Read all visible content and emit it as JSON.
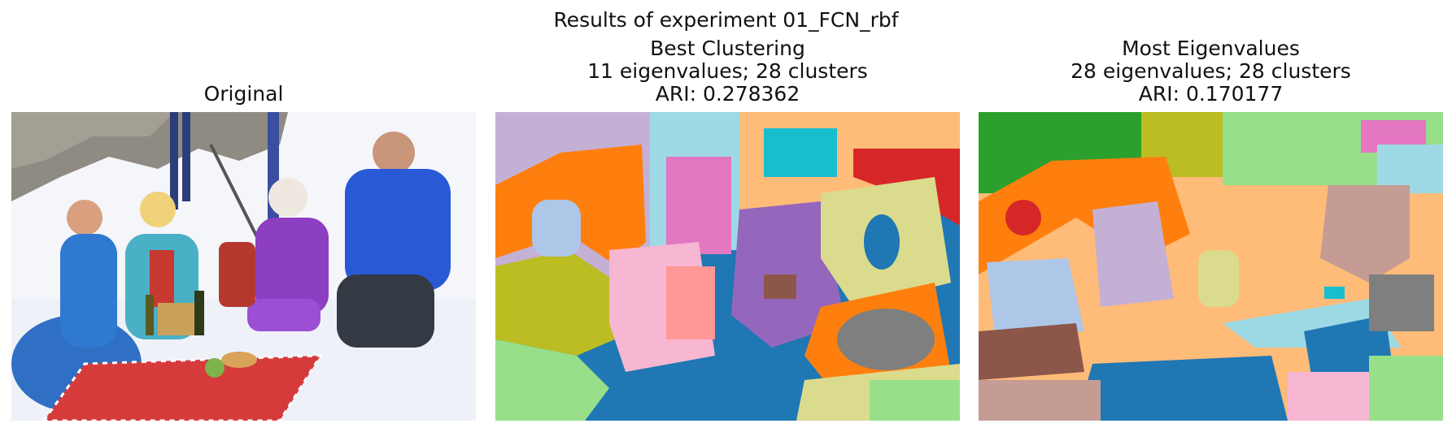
{
  "figure": {
    "suptitle": "Results of experiment 01_FCN_rbf"
  },
  "panels": [
    {
      "title_lines": [
        "Original"
      ],
      "image_description": "photo-original"
    },
    {
      "title_lines": [
        "Best Clustering",
        "11 eigenvalues; 28 clusters",
        "ARI: 0.278362"
      ],
      "image_description": "segmentation-map"
    },
    {
      "title_lines": [
        "Most Eigenvalues",
        "28 eigenvalues; 28 clusters",
        "ARI: 0.170177"
      ],
      "image_description": "segmentation-map"
    }
  ],
  "palette": {
    "blue": "#1f77b4",
    "orange": "#ff7f0e",
    "green": "#2ca02c",
    "red": "#d62728",
    "purple": "#9467bd",
    "brown": "#8c564b",
    "pink": "#e377c2",
    "gray": "#7f7f7f",
    "olive": "#bcbd22",
    "cyan": "#17becf",
    "lightblue": "#aec7e8",
    "peach": "#ffbb78",
    "lightgreen": "#98df8a",
    "lightred": "#ff9896",
    "lavender": "#c5b0d5",
    "tan": "#c49c94",
    "lightpink": "#f7b6d2",
    "lightgray": "#c7c7c7",
    "khaki": "#dbdb8d",
    "lightcyan": "#9edae5"
  }
}
